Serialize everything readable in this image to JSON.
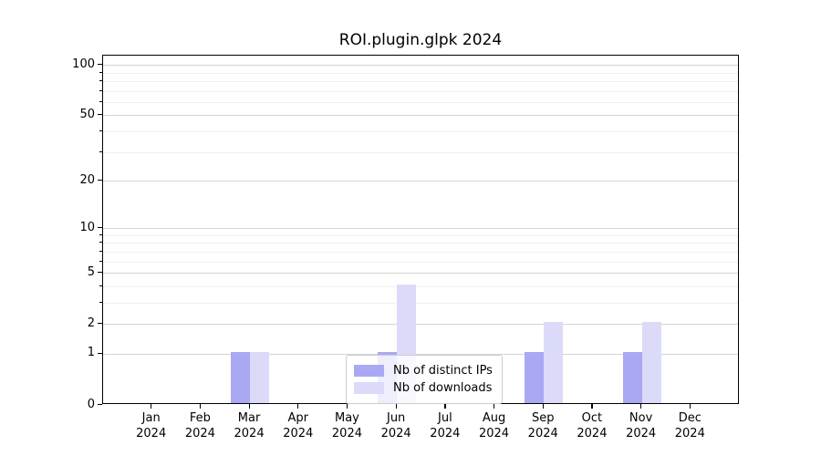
{
  "chart_data": {
    "type": "bar",
    "title": "ROI.plugin.glpk 2024",
    "x_categories": [
      {
        "month": "Jan",
        "year": "2024"
      },
      {
        "month": "Feb",
        "year": "2024"
      },
      {
        "month": "Mar",
        "year": "2024"
      },
      {
        "month": "Apr",
        "year": "2024"
      },
      {
        "month": "May",
        "year": "2024"
      },
      {
        "month": "Jun",
        "year": "2024"
      },
      {
        "month": "Jul",
        "year": "2024"
      },
      {
        "month": "Aug",
        "year": "2024"
      },
      {
        "month": "Sep",
        "year": "2024"
      },
      {
        "month": "Oct",
        "year": "2024"
      },
      {
        "month": "Nov",
        "year": "2024"
      },
      {
        "month": "Dec",
        "year": "2024"
      }
    ],
    "series": [
      {
        "name": "Nb of distinct IPs",
        "color": "#a9a9f3",
        "values": [
          0,
          0,
          1,
          0,
          0,
          1,
          0,
          0,
          1,
          0,
          1,
          0
        ]
      },
      {
        "name": "Nb of downloads",
        "color": "#dbdbf9",
        "values": [
          0,
          0,
          1,
          0,
          0,
          4,
          0,
          0,
          2,
          0,
          2,
          0
        ]
      }
    ],
    "y_axis": {
      "scale": "log1p",
      "ticks": [
        0,
        1,
        2,
        5,
        10,
        20,
        50,
        100
      ],
      "minor_ticks": [
        3,
        4,
        6,
        7,
        8,
        9,
        30,
        40,
        60,
        70,
        80,
        90
      ],
      "top_value": 113
    },
    "grid": {
      "major_color": "#d4d4d4",
      "minor_color": "#f0f0f0",
      "enabled": true
    },
    "legend": {
      "position": "bottom-center"
    }
  }
}
